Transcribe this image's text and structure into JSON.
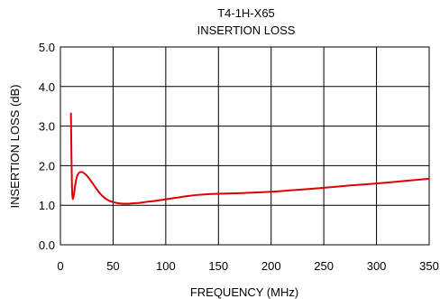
{
  "chart_data": {
    "type": "line",
    "title": "T4-1H-X65",
    "subtitle": "INSERTION LOSS",
    "xlabel": "FREQUENCY (MHz)",
    "ylabel": "INSERTION LOSS (dB)",
    "xlim": [
      0,
      350
    ],
    "ylim": [
      0,
      5
    ],
    "x_ticks": [
      "0",
      "50",
      "100",
      "150",
      "200",
      "250",
      "300",
      "350"
    ],
    "y_ticks": [
      "0.0",
      "1.0",
      "2.0",
      "3.0",
      "4.0",
      "5.0"
    ],
    "grid": true,
    "series": [
      {
        "color": "#e00000",
        "x": [
          10,
          10.5,
          11,
          11.5,
          12,
          13,
          14,
          15,
          16,
          18,
          20,
          22,
          25,
          28,
          32,
          36,
          40,
          45,
          50,
          55,
          60,
          65,
          70,
          75,
          80,
          90,
          100,
          110,
          120,
          130,
          140,
          150,
          175,
          200,
          225,
          250,
          275,
          300,
          325,
          350
        ],
        "y": [
          3.32,
          2.2,
          1.45,
          1.2,
          1.17,
          1.3,
          1.5,
          1.65,
          1.75,
          1.83,
          1.84,
          1.82,
          1.75,
          1.65,
          1.5,
          1.35,
          1.23,
          1.13,
          1.08,
          1.05,
          1.04,
          1.04,
          1.05,
          1.06,
          1.08,
          1.11,
          1.15,
          1.19,
          1.23,
          1.26,
          1.28,
          1.29,
          1.31,
          1.34,
          1.39,
          1.44,
          1.5,
          1.55,
          1.61,
          1.67
        ]
      }
    ]
  }
}
